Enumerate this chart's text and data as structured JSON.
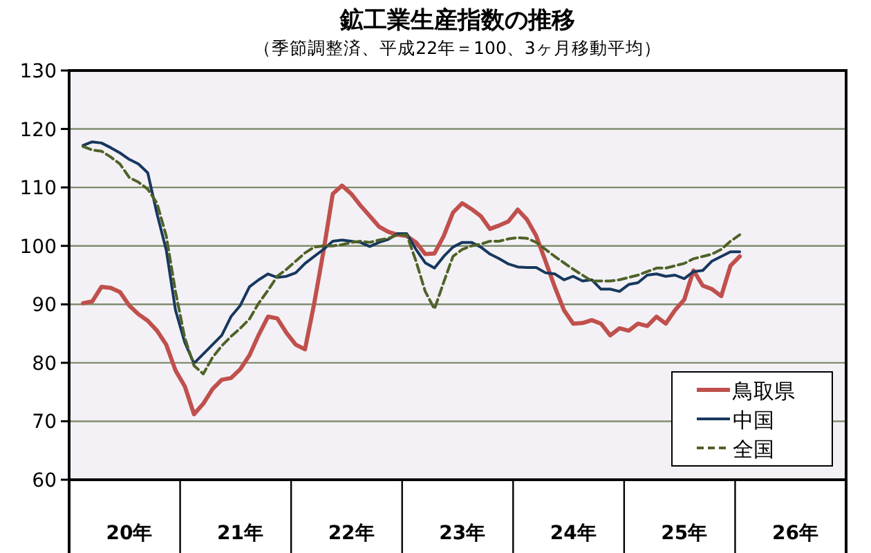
{
  "chart_data": {
    "type": "line",
    "title": "鉱工業生産指数の推移",
    "subtitle": "（季節調整済、平成22年＝100、3ヶ月移動平均）",
    "categories": [
      null,
      null,
      null,
      null,
      null,
      null,
      "20年",
      null,
      null,
      null,
      null,
      null,
      null,
      null,
      null,
      null,
      null,
      null,
      "21年",
      null,
      null,
      null,
      null,
      null,
      null,
      null,
      null,
      null,
      null,
      null,
      "22年",
      null,
      null,
      null,
      null,
      null,
      null,
      null,
      null,
      null,
      null,
      null,
      "23年",
      null,
      null,
      null,
      null,
      null,
      null,
      null,
      null,
      null,
      null,
      null,
      "24年",
      null,
      null,
      null,
      null,
      null,
      null,
      null,
      null,
      null,
      null,
      null,
      "25年",
      null,
      null,
      null,
      null,
      null,
      null,
      null,
      null,
      null,
      null,
      null,
      "26年",
      null,
      null,
      null,
      null,
      null
    ],
    "series": [
      {
        "name": "鳥取県",
        "color": "#c0504d",
        "line_style": "solid",
        "values": [
          null,
          90.2,
          90.5,
          93.0,
          92.8,
          92.1,
          89.8,
          88.3,
          87.2,
          85.5,
          83.1,
          78.7,
          76.0,
          71.2,
          73.0,
          75.5,
          77.1,
          77.4,
          78.9,
          81.3,
          84.8,
          87.9,
          87.6,
          85.1,
          83.1,
          82.3,
          90.2,
          99.1,
          108.9,
          110.3,
          108.9,
          106.9,
          105.1,
          103.3,
          102.4,
          101.9,
          101.7,
          100.6,
          98.6,
          98.7,
          101.7,
          105.7,
          107.3,
          106.3,
          105.1,
          102.9,
          103.5,
          104.2,
          106.2,
          104.5,
          101.7,
          97.4,
          93.0,
          89.0,
          86.7,
          86.8,
          87.3,
          86.7,
          84.7,
          85.9,
          85.5,
          86.7,
          86.3,
          87.9,
          86.7,
          89.0,
          90.8,
          95.8,
          93.2,
          92.6,
          91.4,
          96.6,
          98.2,
          null,
          null,
          null,
          null,
          null,
          null,
          null,
          null,
          null,
          null,
          null
        ]
      },
      {
        "name": "中国",
        "color": "#17375e",
        "line_style": "solid",
        "values": [
          null,
          117.2,
          117.8,
          117.6,
          116.8,
          115.9,
          114.8,
          114.0,
          112.5,
          105.5,
          99.3,
          89.0,
          83.5,
          79.9,
          81.5,
          83.1,
          84.7,
          87.9,
          89.8,
          93.0,
          94.2,
          95.2,
          94.6,
          94.8,
          95.4,
          97.0,
          98.2,
          99.4,
          100.8,
          101.0,
          100.8,
          100.6,
          99.9,
          100.6,
          101.1,
          102.1,
          102.1,
          99.4,
          97.1,
          96.2,
          98.2,
          99.8,
          100.6,
          100.6,
          99.8,
          98.6,
          97.8,
          96.9,
          96.4,
          96.3,
          96.3,
          95.4,
          95.2,
          94.2,
          94.8,
          94.0,
          94.2,
          92.6,
          92.6,
          92.2,
          93.4,
          93.7,
          95.0,
          95.2,
          94.8,
          95.0,
          94.4,
          95.6,
          95.8,
          97.4,
          98.2,
          99.0,
          99.0,
          null,
          null,
          null,
          null,
          null,
          null,
          null,
          null,
          null,
          null,
          null
        ]
      },
      {
        "name": "全国",
        "color": "#4f6228",
        "line_style": "dashed",
        "values": [
          null,
          117.0,
          116.4,
          116.2,
          115.2,
          114.0,
          111.7,
          110.9,
          109.7,
          107.3,
          101.7,
          92.2,
          84.3,
          79.5,
          78.1,
          80.9,
          82.9,
          84.5,
          85.9,
          87.5,
          90.2,
          92.4,
          94.8,
          96.0,
          97.4,
          98.8,
          99.8,
          100.0,
          100.0,
          100.2,
          100.6,
          100.8,
          100.6,
          101.0,
          101.3,
          101.9,
          101.9,
          97.4,
          92.2,
          89.2,
          93.8,
          98.2,
          99.4,
          100.0,
          100.3,
          100.8,
          100.8,
          101.2,
          101.4,
          101.3,
          100.6,
          99.4,
          98.2,
          97.1,
          96.0,
          95.0,
          94.0,
          94.0,
          94.0,
          94.2,
          94.6,
          95.0,
          95.6,
          96.2,
          96.2,
          96.6,
          97.0,
          97.8,
          98.2,
          98.6,
          99.4,
          100.8,
          101.9,
          null,
          null,
          null,
          null,
          null,
          null,
          null,
          null,
          null,
          null,
          null
        ]
      }
    ],
    "ylim": [
      60,
      130
    ],
    "yticks": [
      60,
      70,
      80,
      90,
      100,
      110,
      120,
      130
    ],
    "grid": "y",
    "legend": "bottom right",
    "marker": "none"
  }
}
